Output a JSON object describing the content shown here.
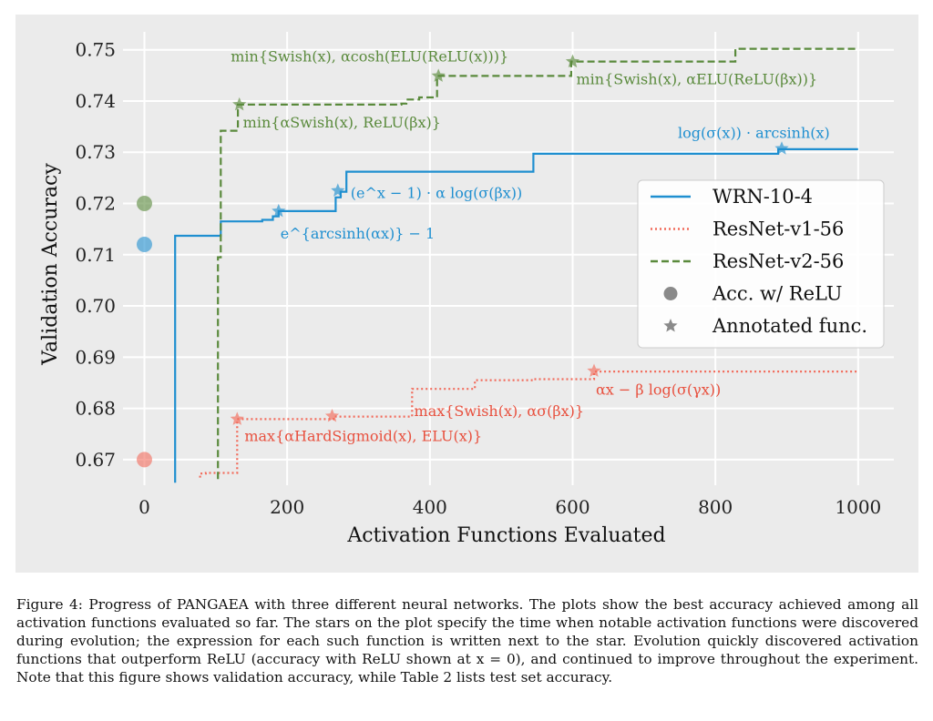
{
  "chart_data": {
    "type": "line",
    "style": "step",
    "xlabel": "Activation Functions Evaluated",
    "ylabel": "Validation Accuracy",
    "xlim": [
      -30,
      1050
    ],
    "ylim": [
      0.665,
      0.7535
    ],
    "xticks": [
      0,
      200,
      400,
      600,
      800,
      1000
    ],
    "xtick_labels": [
      "0",
      "200",
      "400",
      "600",
      "800",
      "1000"
    ],
    "yticks": [
      0.67,
      0.68,
      0.69,
      0.7,
      0.71,
      0.72,
      0.73,
      0.74,
      0.75
    ],
    "ytick_labels": [
      "0.67",
      "0.68",
      "0.69",
      "0.70",
      "0.71",
      "0.72",
      "0.73",
      "0.74",
      "0.75"
    ],
    "grid": true,
    "legend_position": "center-right",
    "series": [
      {
        "name": "WRN-10-4",
        "color": "#1f8fd0",
        "dash": "solid",
        "points": [
          [
            43,
            0.6655
          ],
          [
            43,
            0.7137
          ],
          [
            107,
            0.7137
          ],
          [
            107,
            0.7165
          ],
          [
            165,
            0.7165
          ],
          [
            165,
            0.7168
          ],
          [
            180,
            0.7168
          ],
          [
            180,
            0.7175
          ],
          [
            188,
            0.7175
          ],
          [
            188,
            0.7185
          ],
          [
            268,
            0.7185
          ],
          [
            268,
            0.7212
          ],
          [
            275,
            0.7212
          ],
          [
            275,
            0.7223
          ],
          [
            283,
            0.7223
          ],
          [
            283,
            0.7262
          ],
          [
            545,
            0.7262
          ],
          [
            545,
            0.7297
          ],
          [
            888,
            0.7297
          ],
          [
            888,
            0.7306
          ],
          [
            1000,
            0.7306
          ]
        ],
        "relu_accuracy": 0.712,
        "stars": [
          {
            "x": 188,
            "y": 0.7185,
            "label": "e^{arcsinh(αx)} − 1"
          },
          {
            "x": 271,
            "y": 0.7225,
            "label": "(e^x − 1) · α log(σ(βx))"
          },
          {
            "x": 893,
            "y": 0.7307,
            "label": "log(σ(x)) · arcsinh(x)"
          }
        ]
      },
      {
        "name": "ResNet-v1-56",
        "color": "#f26b5b",
        "dash": "dotted",
        "points": [
          [
            78,
            0.6665
          ],
          [
            78,
            0.6673
          ],
          [
            86,
            0.6673
          ],
          [
            86,
            0.6674
          ],
          [
            130,
            0.6674
          ],
          [
            130,
            0.6779
          ],
          [
            265,
            0.6779
          ],
          [
            265,
            0.6784
          ],
          [
            375,
            0.6784
          ],
          [
            375,
            0.6838
          ],
          [
            463,
            0.6838
          ],
          [
            463,
            0.6855
          ],
          [
            545,
            0.6855
          ],
          [
            545,
            0.6857
          ],
          [
            630,
            0.6857
          ],
          [
            630,
            0.6872
          ],
          [
            1000,
            0.6872
          ]
        ],
        "relu_accuracy": 0.67,
        "stars": [
          {
            "x": 130,
            "y": 0.6779,
            "label": "max{αHardSigmoid(x), ELU(x)}"
          },
          {
            "x": 263,
            "y": 0.6785,
            "label": "max{Swish(x), ασ(βx)}"
          },
          {
            "x": 630,
            "y": 0.6873,
            "label": "αx − β log(σ(γx))"
          }
        ]
      },
      {
        "name": "ResNet-v2-56",
        "color": "#5a8a3c",
        "dash": "dashed",
        "points": [
          [
            103,
            0.6662
          ],
          [
            103,
            0.7095
          ],
          [
            107,
            0.7095
          ],
          [
            107,
            0.7342
          ],
          [
            131,
            0.7342
          ],
          [
            131,
            0.7393
          ],
          [
            360,
            0.7393
          ],
          [
            360,
            0.7395
          ],
          [
            367,
            0.7395
          ],
          [
            367,
            0.7403
          ],
          [
            385,
            0.7403
          ],
          [
            385,
            0.7407
          ],
          [
            410,
            0.7407
          ],
          [
            410,
            0.7449
          ],
          [
            598,
            0.7449
          ],
          [
            598,
            0.7477
          ],
          [
            828,
            0.7477
          ],
          [
            828,
            0.7502
          ],
          [
            1000,
            0.7502
          ]
        ],
        "relu_accuracy": 0.72,
        "stars": [
          {
            "x": 133,
            "y": 0.7393,
            "label": "min{αSwish(x), ReLU(βx)}"
          },
          {
            "x": 412,
            "y": 0.7449,
            "label": "min{Swish(x), αcosh(ELU(ReLU(x)))}"
          },
          {
            "x": 600,
            "y": 0.7477,
            "label": "min{Swish(x), αELU(ReLU(βx))}"
          }
        ]
      }
    ],
    "legend": [
      {
        "label": "WRN-10-4",
        "kind": "line",
        "color": "#1f8fd0",
        "dash": "solid"
      },
      {
        "label": "ResNet-v1-56",
        "kind": "line",
        "color": "#f26b5b",
        "dash": "dotted"
      },
      {
        "label": "ResNet-v2-56",
        "kind": "line",
        "color": "#5a8a3c",
        "dash": "dashed"
      },
      {
        "label": "Acc. w/ ReLU",
        "kind": "dot",
        "color": "#8a8a8a"
      },
      {
        "label": "Annotated func.",
        "kind": "star",
        "color": "#8a8a8a"
      }
    ]
  },
  "caption": "Figure 4: Progress of PANGAEA with three different neural networks. The plots show the best accuracy achieved among all activation functions evaluated so far. The stars on the plot specify the time when notable activation functions were discovered during evolution; the expression for each such function is written next to the star. Evolution quickly discovered activation functions that outperform ReLU (accuracy with ReLU shown at x = 0), and continued to improve throughout the experiment. Note that this figure shows validation accuracy, while Table 2 lists test set accuracy."
}
